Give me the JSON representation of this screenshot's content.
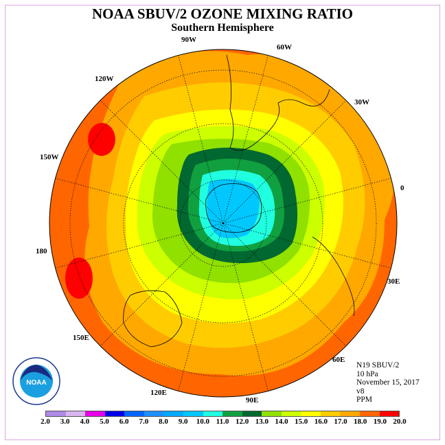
{
  "title": "NOAA SBUV/2 OZONE MIXING RATIO",
  "subtitle": "Southern Hemisphere",
  "longitude_labels": [
    "90W",
    "60W",
    "30W",
    "0",
    "30E",
    "60E",
    "90E",
    "120E",
    "150E",
    "180",
    "150W",
    "120W"
  ],
  "info": {
    "satellite": "N19 SBUV/2",
    "level": "10 hPa",
    "date": "November 15, 2017",
    "version": "v8",
    "units": "PPM"
  },
  "colorbar": {
    "labels": [
      "2.0",
      "3.0",
      "4.0",
      "5.0",
      "6.0",
      "7.0",
      "8.0",
      "9.0",
      "10.0",
      "11.0",
      "12.0",
      "13.0",
      "14.0",
      "15.0",
      "16.0",
      "17.0",
      "18.0",
      "19.0",
      "20.0"
    ],
    "colors": [
      "#b08ae8",
      "#d8b4f0",
      "#e800e8",
      "#0000e8",
      "#0066ff",
      "#1e90ff",
      "#00aaff",
      "#00c8ff",
      "#20ffe0",
      "#10a040",
      "#006830",
      "#90e000",
      "#ccff00",
      "#ffff00",
      "#ffcc00",
      "#ffa800",
      "#ff6600",
      "#ff0000",
      "#8b5a2b"
    ]
  },
  "logo": {
    "text": "NOAA",
    "ring_text": "NATIONAL OCEANIC AND ATMOSPHERIC ADMINISTRATION"
  }
}
